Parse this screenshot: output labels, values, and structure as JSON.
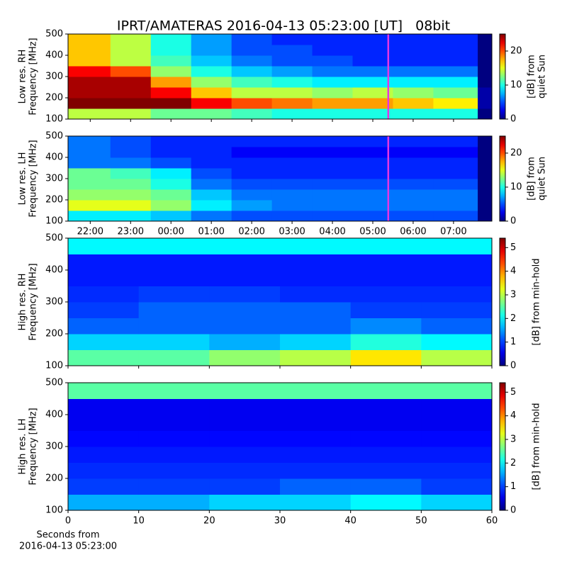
{
  "title": "IPRT/AMATERAS 2016-04-13 05:23:00 [UT]   08bit",
  "chart_data": [
    {
      "type": "heatmap",
      "ylabel": [
        "Low res. RH",
        "Frequency [MHz]"
      ],
      "colorbar_label": [
        "[dB] from",
        "quiet Sun"
      ],
      "colormap": "jet",
      "xlim": [
        21.45,
        31.95
      ],
      "xticks": [
        22,
        23,
        24,
        25,
        26,
        27,
        28,
        29,
        30,
        31
      ],
      "ylim": [
        100,
        500
      ],
      "yticks": [
        100,
        200,
        300,
        400,
        500
      ],
      "clim": [
        0,
        25
      ],
      "cticks": [
        0,
        10,
        20
      ],
      "x_edges": [
        21.45,
        22.5,
        23.5,
        24.5,
        25.5,
        26.5,
        27.5,
        28.5,
        29.5,
        30.5,
        31.6,
        31.95
      ],
      "y_edges": [
        100,
        150,
        200,
        250,
        300,
        350,
        400,
        450,
        500
      ],
      "z": [
        [
          14,
          14,
          12,
          12,
          11,
          10,
          10,
          10,
          10,
          10,
          0
        ],
        [
          25,
          25,
          25,
          22,
          20,
          19,
          18,
          18,
          17,
          16,
          1
        ],
        [
          24,
          24,
          22,
          17,
          14,
          14,
          13,
          14,
          13,
          12,
          1
        ],
        [
          24,
          24,
          18,
          13,
          11,
          10,
          9,
          9,
          9,
          9,
          0
        ],
        [
          22,
          20,
          13,
          10,
          8,
          7,
          6,
          6,
          6,
          6,
          0
        ],
        [
          17,
          14,
          11,
          8,
          6,
          5,
          5,
          4,
          4,
          4,
          0
        ],
        [
          17,
          14,
          10,
          7,
          5,
          5,
          4,
          4,
          4,
          4,
          0
        ],
        [
          17,
          14,
          10,
          7,
          5,
          4,
          4,
          4,
          4,
          4,
          0
        ]
      ],
      "marker_x": 29.383,
      "marker_color": "#e536e5"
    },
    {
      "type": "heatmap",
      "ylabel": [
        "Low res. LH",
        "Frequency [MHz]"
      ],
      "colorbar_label": [
        "[dB] from",
        "quiet Sun"
      ],
      "colormap": "jet",
      "xlim": [
        21.45,
        31.95
      ],
      "xticks": [
        {
          "value": 22,
          "label": "22:00"
        },
        {
          "value": 23,
          "label": "23:00"
        },
        {
          "value": 24,
          "label": "00:00"
        },
        {
          "value": 25,
          "label": "01:00"
        },
        {
          "value": 26,
          "label": "02:00"
        },
        {
          "value": 27,
          "label": "03:00"
        },
        {
          "value": 28,
          "label": "04:00"
        },
        {
          "value": 29,
          "label": "05:00"
        },
        {
          "value": 30,
          "label": "06:00"
        },
        {
          "value": 31,
          "label": "07:00"
        }
      ],
      "ylim": [
        100,
        500
      ],
      "yticks": [
        100,
        200,
        300,
        400,
        500
      ],
      "clim": [
        0,
        25
      ],
      "cticks": [
        0,
        10,
        20
      ],
      "x_edges": [
        21.45,
        22.5,
        23.5,
        24.5,
        25.5,
        26.5,
        27.5,
        28.5,
        29.5,
        30.5,
        31.6,
        31.95
      ],
      "y_edges": [
        100,
        150,
        200,
        250,
        300,
        350,
        400,
        450,
        500
      ],
      "z": [
        [
          9,
          9,
          8,
          6,
          5,
          5,
          5,
          5,
          5,
          5,
          0
        ],
        [
          15,
          15,
          13,
          9,
          7,
          6,
          6,
          6,
          6,
          6,
          0
        ],
        [
          13,
          13,
          12,
          8,
          6,
          6,
          6,
          6,
          6,
          6,
          0
        ],
        [
          12,
          12,
          10,
          6,
          5,
          5,
          5,
          5,
          5,
          5,
          0
        ],
        [
          12,
          11,
          9,
          5,
          4,
          4,
          4,
          4,
          4,
          4,
          0
        ],
        [
          6,
          6,
          5,
          4,
          4,
          4,
          4,
          4,
          4,
          4,
          0
        ],
        [
          6,
          5,
          4,
          4,
          3,
          3,
          3,
          3,
          3,
          3,
          0
        ],
        [
          6,
          5,
          4,
          4,
          4,
          4,
          4,
          4,
          4,
          4,
          0
        ]
      ],
      "marker_x": 29.383,
      "marker_color": "#e536e5"
    },
    {
      "type": "heatmap",
      "ylabel": [
        "High res. RH",
        "Frequency [MHz]"
      ],
      "colorbar_label": [
        "[dB] from min-hold"
      ],
      "colormap": "jet",
      "xlim": [
        0,
        60
      ],
      "xticks": [
        0,
        10,
        20,
        30,
        40,
        50,
        60
      ],
      "ylim": [
        100,
        500
      ],
      "yticks": [
        100,
        200,
        300,
        400,
        500
      ],
      "clim": [
        0,
        5.4
      ],
      "cticks": [
        0,
        1,
        2,
        3,
        4,
        5
      ],
      "x_edges": [
        0,
        10,
        20,
        30,
        40,
        50,
        60
      ],
      "y_edges": [
        100,
        150,
        200,
        250,
        300,
        350,
        400,
        450,
        500
      ],
      "z": [
        [
          2.5,
          2.5,
          2.8,
          3,
          3.5,
          3
        ],
        [
          1.8,
          1.8,
          1.6,
          1.8,
          2.2,
          2
        ],
        [
          1.2,
          1.2,
          1.2,
          1.2,
          1.4,
          1.2
        ],
        [
          1,
          1.2,
          1.2,
          1.2,
          1,
          1
        ],
        [
          0.9,
          1,
          1,
          0.9,
          0.9,
          0.9
        ],
        [
          0.8,
          0.8,
          0.8,
          0.8,
          0.8,
          0.8
        ],
        [
          0.8,
          0.8,
          0.8,
          0.8,
          0.8,
          0.8
        ],
        [
          2,
          2,
          2,
          2,
          2,
          2
        ]
      ]
    },
    {
      "type": "heatmap",
      "ylabel": [
        "High res. LH",
        "Frequency [MHz]"
      ],
      "colorbar_label": [
        "[dB] from min-hold"
      ],
      "colormap": "jet",
      "xlim": [
        0,
        60
      ],
      "xticks": [
        0,
        10,
        20,
        30,
        40,
        50,
        60
      ],
      "xlabel": [
        "Seconds from",
        "2016-04-13 05:23:00"
      ],
      "ylim": [
        100,
        500
      ],
      "yticks": [
        100,
        200,
        300,
        400,
        500
      ],
      "clim": [
        0,
        5.4
      ],
      "cticks": [
        0,
        1,
        2,
        3,
        4,
        5
      ],
      "x_edges": [
        0,
        10,
        20,
        30,
        40,
        50,
        60
      ],
      "y_edges": [
        100,
        150,
        200,
        250,
        300,
        350,
        400,
        450,
        500
      ],
      "z": [
        [
          1.6,
          1.6,
          1.8,
          1.8,
          2,
          1.8
        ],
        [
          1,
          1,
          1,
          1.2,
          1.2,
          1
        ],
        [
          0.9,
          0.9,
          0.9,
          0.9,
          0.9,
          0.9
        ],
        [
          0.8,
          0.8,
          0.8,
          0.8,
          0.8,
          0.8
        ],
        [
          0.7,
          0.7,
          0.7,
          0.7,
          0.7,
          0.7
        ],
        [
          0.6,
          0.6,
          0.6,
          0.6,
          0.6,
          0.6
        ],
        [
          0.6,
          0.6,
          0.6,
          0.6,
          0.6,
          0.6
        ],
        [
          2.5,
          2.5,
          2.5,
          2.5,
          2.5,
          2.5
        ]
      ]
    }
  ]
}
